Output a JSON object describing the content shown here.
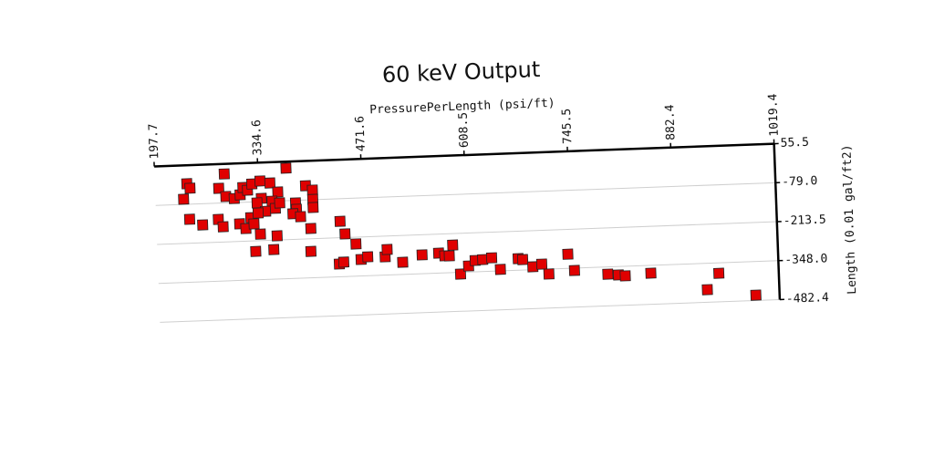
{
  "chart_data": {
    "type": "scatter",
    "title": "60 keV Output",
    "xlabel": "PressurePerLength (psi/ft)",
    "ylabel": "Length (0.01 gal/ft2)",
    "xaxis_position": "top",
    "yaxis_position": "right",
    "grid": true,
    "color": "#e00000",
    "xlim": [
      197.7,
      1019.4
    ],
    "xticks": [
      197.7,
      334.6,
      471.6,
      608.5,
      745.5,
      882.4,
      1019.4
    ],
    "ylim": [
      -482.4,
      55.5
    ],
    "yticks": [
      55.5,
      {
        "value": -79,
        "label": "-79.0"
      },
      -213.5,
      {
        "value": -348,
        "label": "-348.0"
      },
      -482.4
    ],
    "x": [
      240,
      244,
      235,
      242,
      259,
      290,
      282,
      291,
      280,
      286,
      302,
      310,
      314,
      320,
      326,
      337,
      350,
      360,
      338,
      332,
      352,
      343,
      356,
      362,
      372,
      383,
      384,
      379,
      389,
      397,
      406,
      406,
      406,
      402,
      308,
      316,
      323,
      333,
      327,
      335,
      357,
      328,
      352,
      401,
      441,
      447,
      461,
      438,
      444,
      467,
      476,
      499,
      502,
      522,
      548,
      570,
      578,
      584,
      589,
      598,
      609,
      618,
      628,
      640,
      651,
      675,
      681,
      694,
      706,
      715,
      741,
      749,
      793,
      807,
      816,
      850,
      924,
      940,
      988
    ],
    "values": [
      -8,
      -24,
      -61,
      -131,
      -152,
      21,
      -28,
      -57,
      -135,
      -161,
      -65,
      -53,
      -28,
      -38,
      -17,
      -8,
      -16,
      -48,
      -68,
      -83,
      -79,
      -113,
      -104,
      -86,
      33,
      -88,
      -110,
      -125,
      -136,
      -30,
      -46,
      -78,
      -106,
      -178,
      -153,
      -170,
      -133,
      -118,
      -155,
      -191,
      -199,
      -250,
      -246,
      -257,
      -157,
      -201,
      -237,
      -304,
      -298,
      -291,
      -283,
      -285,
      -260,
      -306,
      -283,
      -279,
      -289,
      -290,
      -253,
      -354,
      -327,
      -309,
      -307,
      -302,
      -343,
      -308,
      -312,
      -338,
      -330,
      -365,
      -299,
      -356,
      -373,
      -377,
      -381,
      -375,
      -439,
      -384,
      -464
    ]
  }
}
